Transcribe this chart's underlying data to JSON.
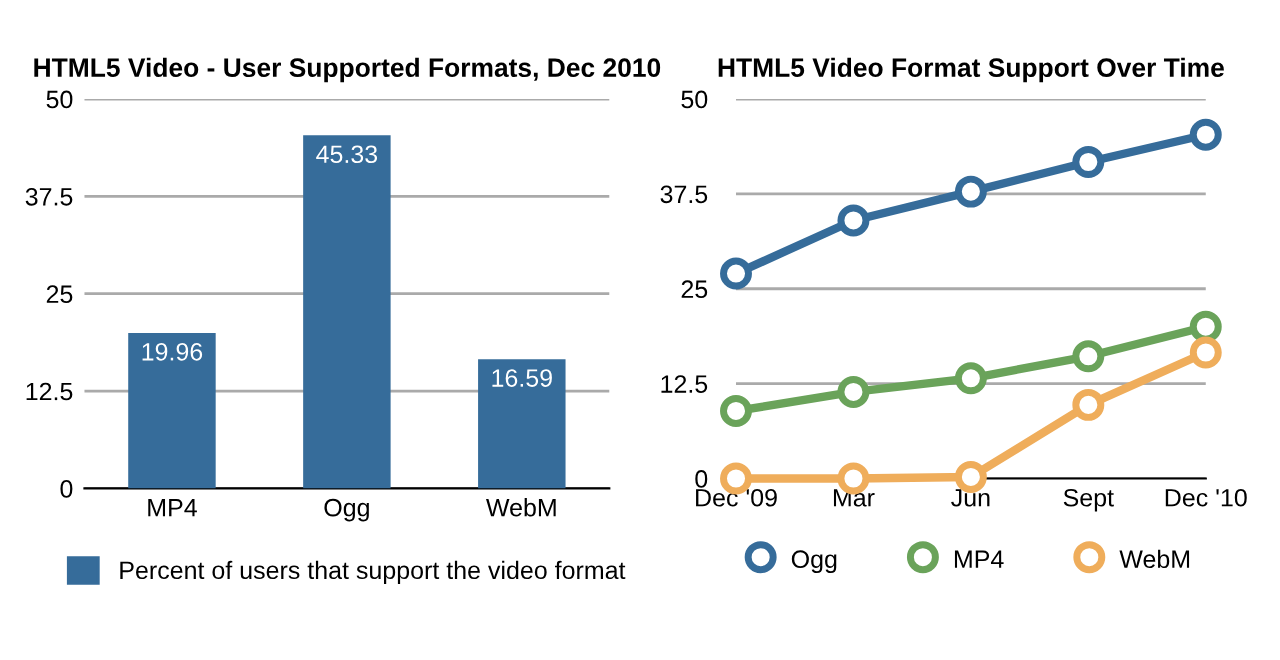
{
  "chart_data": [
    {
      "type": "bar",
      "title": "HTML5 Video - User Supported Formats, Dec 2010",
      "categories": [
        "MP4",
        "Ogg",
        "WebM"
      ],
      "series": [
        {
          "name": "Percent of users that support the video format",
          "color": "#366c9a",
          "values": [
            19.96,
            45.33,
            16.59
          ]
        }
      ],
      "ylim": [
        0,
        50
      ],
      "yticks": [
        0,
        12.5,
        25,
        37.5,
        50
      ],
      "grid": "y",
      "data_labels": true,
      "legend": "bottom"
    },
    {
      "type": "line",
      "title": "HTML5 Video Format Support Over Time",
      "categories": [
        "Dec '09",
        "Mar",
        "Jun",
        "Sept",
        "Dec '10"
      ],
      "series": [
        {
          "name": "Ogg",
          "color": "#366c9a",
          "values": [
            27.0,
            34.0,
            37.8,
            41.7,
            45.3
          ]
        },
        {
          "name": "MP4",
          "color": "#6aa35a",
          "values": [
            8.9,
            11.4,
            13.2,
            16.1,
            20.0
          ]
        },
        {
          "name": "WebM",
          "color": "#efad5b",
          "values": [
            0,
            0,
            0.2,
            9.7,
            16.6
          ]
        }
      ],
      "ylim": [
        0,
        50
      ],
      "yticks": [
        0,
        12.5,
        25,
        37.5,
        50
      ],
      "grid": "y",
      "marker": "circle",
      "line_style": "solid",
      "legend": "bottom"
    }
  ]
}
